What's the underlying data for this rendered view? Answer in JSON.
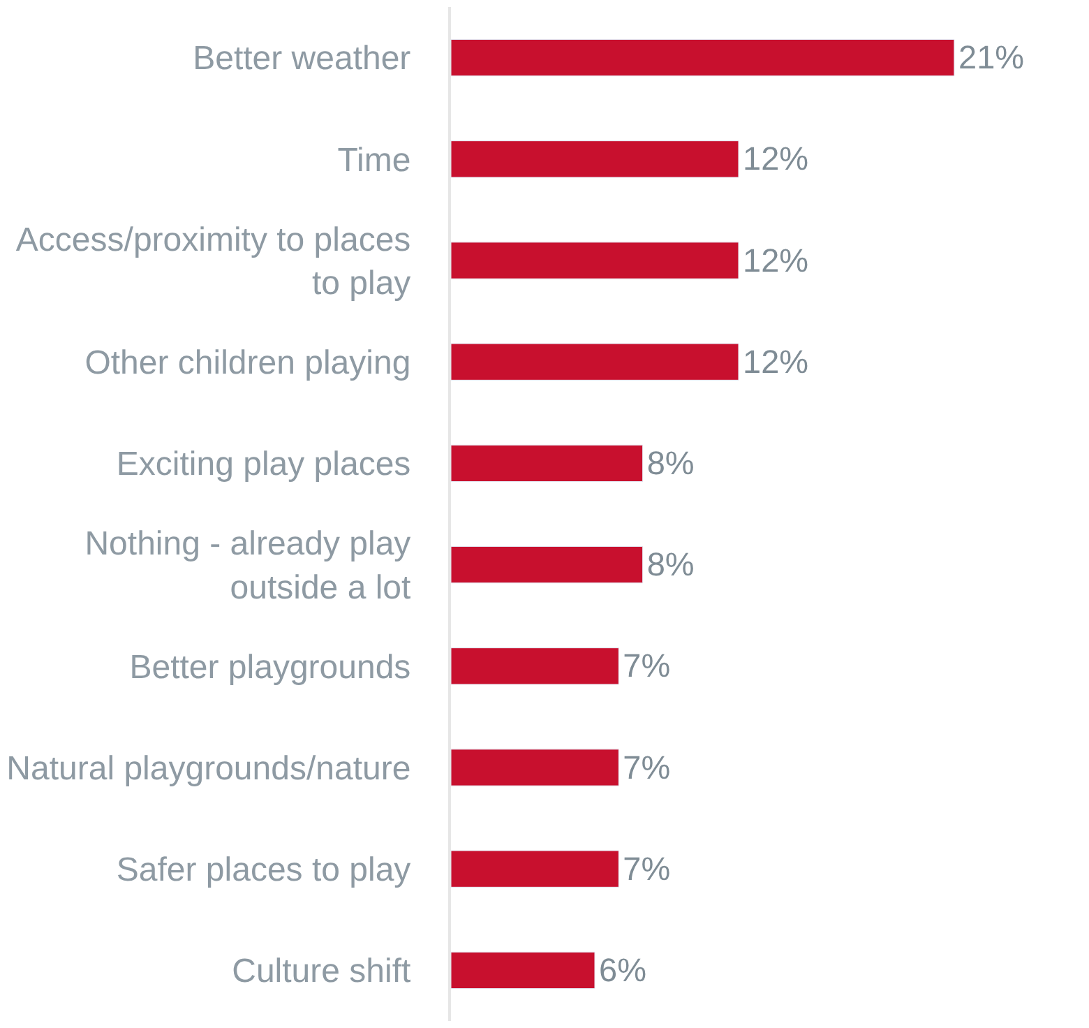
{
  "chart_data": {
    "type": "bar",
    "orientation": "horizontal",
    "categories": [
      "Better weather",
      "Time",
      "Access/proximity to places to play",
      "Other children playing",
      "Exciting play places",
      "Nothing - already play outside a lot",
      "Better playgrounds",
      "Natural playgrounds/nature",
      "Safer places to play",
      "Culture shift"
    ],
    "values": [
      21,
      12,
      12,
      12,
      8,
      8,
      7,
      7,
      7,
      6
    ],
    "value_labels": [
      "21%",
      "12%",
      "12%",
      "12%",
      "8%",
      "8%",
      "7%",
      "7%",
      "7%",
      "6%"
    ],
    "color": "#c8102e",
    "tick_labels": "y"
  }
}
